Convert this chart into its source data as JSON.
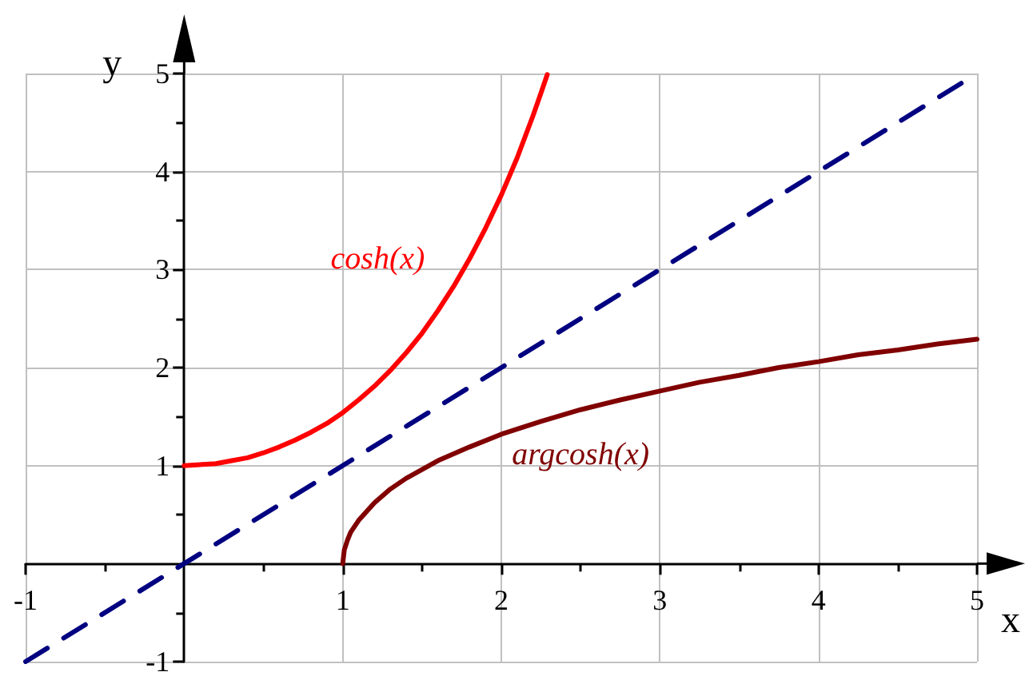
{
  "chart_data": {
    "type": "line",
    "xlabel": "x",
    "ylabel": "y",
    "xlim": [
      -1,
      5
    ],
    "ylim": [
      -1,
      5
    ],
    "xticks": [
      -1,
      {
        "value": -0.5,
        "label": null
      },
      {
        "value": 0.5,
        "label": null
      },
      1,
      {
        "value": 1.5,
        "label": null
      },
      2,
      {
        "value": 2.5,
        "label": null
      },
      3,
      {
        "value": 3.5,
        "label": null
      },
      4,
      {
        "value": 4.5,
        "label": null
      },
      5
    ],
    "yticks": [
      -1,
      {
        "value": -0.5,
        "label": null
      },
      {
        "value": 0.5,
        "label": null
      },
      1,
      {
        "value": 1.5,
        "label": null
      },
      2,
      {
        "value": 2.5,
        "label": null
      },
      3,
      {
        "value": 3.5,
        "label": null
      },
      4,
      {
        "value": 4.5,
        "label": null
      },
      5
    ],
    "grid": true,
    "marker": "none",
    "series": [
      {
        "name": "cosh(x)",
        "color": "#ff0000",
        "line_style": "solid",
        "x": [
          0,
          0.1,
          0.2,
          0.3,
          0.4,
          0.5,
          0.6,
          0.7,
          0.8,
          0.9,
          1,
          1.1,
          1.2,
          1.3,
          1.4,
          1.5,
          1.6,
          1.7,
          1.8,
          1.9,
          2,
          2.1,
          2.2,
          2.25,
          2.29
        ],
        "values": [
          1,
          1.01,
          1.02,
          1.05,
          1.08,
          1.13,
          1.19,
          1.26,
          1.34,
          1.43,
          1.54,
          1.67,
          1.81,
          1.97,
          2.15,
          2.35,
          2.58,
          2.83,
          3.11,
          3.42,
          3.76,
          4.14,
          4.57,
          4.8,
          4.99
        ]
      },
      {
        "name": "argcosh(x)",
        "color": "#800000",
        "line_style": "solid",
        "x": [
          1,
          1.01,
          1.03,
          1.05,
          1.1,
          1.2,
          1.3,
          1.4,
          1.5,
          1.6,
          1.8,
          2,
          2.25,
          2.5,
          2.75,
          3,
          3.25,
          3.5,
          3.75,
          4,
          4.25,
          4.5,
          4.75,
          5
        ],
        "values": [
          0,
          0.14,
          0.24,
          0.32,
          0.44,
          0.62,
          0.76,
          0.87,
          0.96,
          1.05,
          1.19,
          1.32,
          1.45,
          1.57,
          1.67,
          1.76,
          1.85,
          1.92,
          2,
          2.06,
          2.13,
          2.18,
          2.24,
          2.29
        ]
      },
      {
        "color": "#000080",
        "line_style": "dashed",
        "x": [
          -1,
          5
        ],
        "values": [
          -1,
          5
        ]
      }
    ]
  }
}
